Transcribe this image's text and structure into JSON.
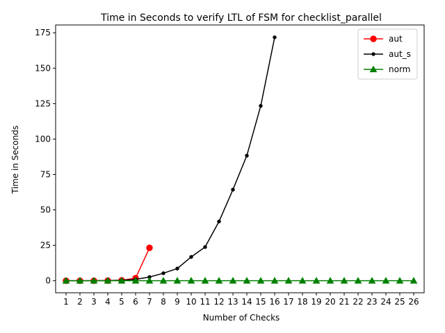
{
  "chart_data": {
    "type": "line",
    "title": "Time in Seconds to verify LTL of FSM for checklist_parallel",
    "xlabel": "Number of Checks",
    "ylabel": "Time in Seconds",
    "xlim": [
      0.25,
      26.75
    ],
    "ylim": [
      -8.5,
      180.5
    ],
    "x_ticks": [
      1,
      2,
      3,
      4,
      5,
      6,
      7,
      8,
      9,
      10,
      11,
      12,
      13,
      14,
      15,
      16,
      17,
      18,
      19,
      20,
      21,
      22,
      23,
      24,
      25,
      26
    ],
    "y_ticks": [
      0,
      25,
      50,
      75,
      100,
      125,
      150,
      175
    ],
    "legend_position": "upper right",
    "grid": false,
    "series": [
      {
        "name": "aut",
        "color": "#ff0000",
        "marker": "circle",
        "x": [
          1,
          2,
          3,
          4,
          5,
          6,
          7
        ],
        "values": [
          0.0,
          0.0,
          0.0,
          0.1,
          0.3,
          1.8,
          23.2
        ]
      },
      {
        "name": "aut_s",
        "color": "#000000",
        "marker": "point",
        "x": [
          1,
          2,
          3,
          4,
          5,
          6,
          7,
          8,
          9,
          10,
          11,
          12,
          13,
          14,
          15,
          16
        ],
        "values": [
          0.0,
          0.0,
          0.0,
          0.1,
          0.3,
          1.0,
          2.6,
          5.3,
          8.6,
          16.8,
          23.8,
          41.8,
          64.3,
          88.3,
          123.4,
          171.8
        ]
      },
      {
        "name": "norm",
        "color": "#008000",
        "marker": "triangle",
        "x": [
          1,
          2,
          3,
          4,
          5,
          6,
          7,
          8,
          9,
          10,
          11,
          12,
          13,
          14,
          15,
          16,
          17,
          18,
          19,
          20,
          21,
          22,
          23,
          24,
          25,
          26
        ],
        "values": [
          0,
          0,
          0,
          0,
          0,
          0,
          0,
          0,
          0,
          0,
          0,
          0,
          0,
          0,
          0,
          0,
          0,
          0,
          0,
          0,
          0,
          0,
          0,
          0,
          0,
          0
        ]
      }
    ]
  }
}
